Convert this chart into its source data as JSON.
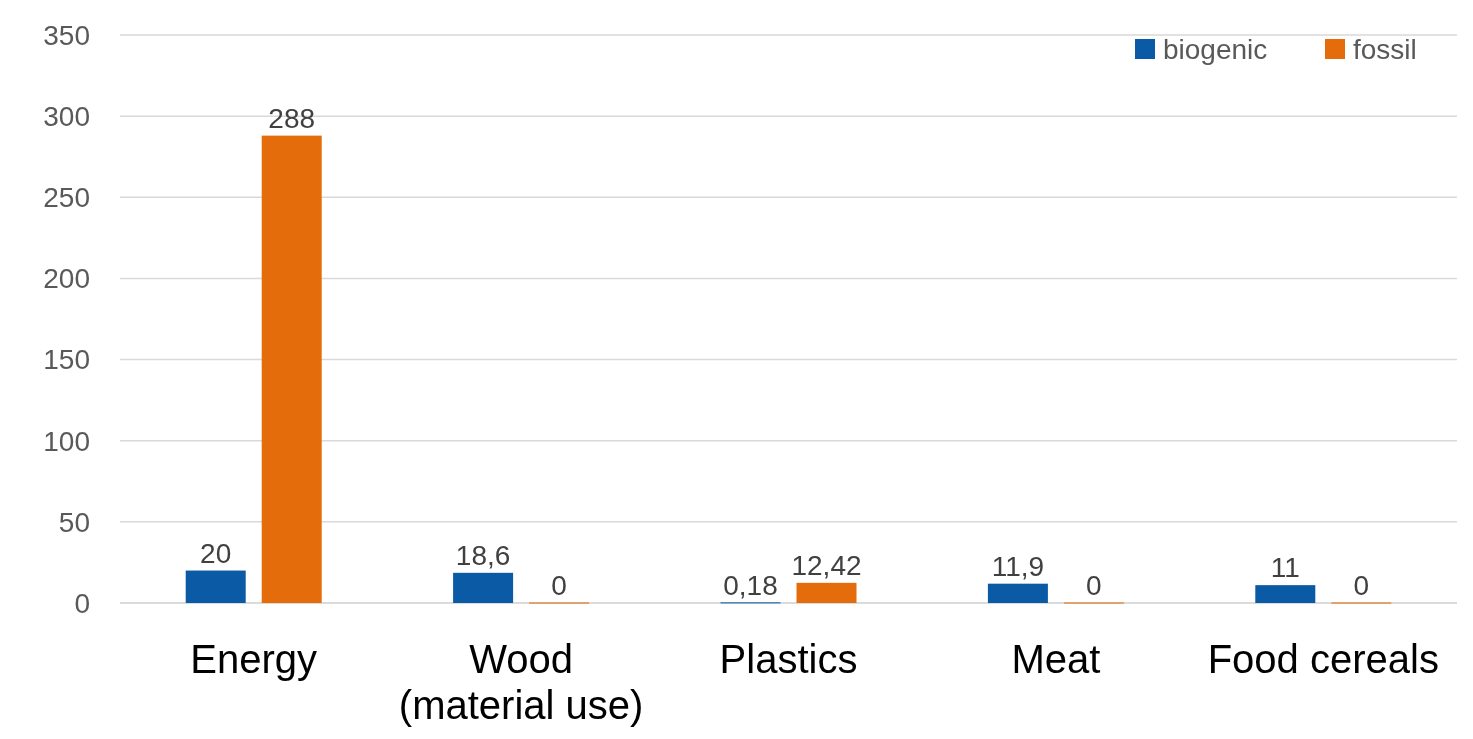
{
  "chart_data": {
    "type": "bar",
    "categories": [
      "Energy",
      "Wood\n(material use)",
      "Plastics",
      "Meat",
      "Food cereals"
    ],
    "series": [
      {
        "name": "biogenic",
        "color": "#0a5aa5",
        "values": [
          20,
          18.6,
          0.18,
          11.9,
          11
        ],
        "value_labels": [
          "20",
          "18,6",
          "0,18",
          "11,9",
          "11"
        ]
      },
      {
        "name": "fossil",
        "color": "#e46c0a",
        "values": [
          288,
          0,
          12.42,
          0,
          0
        ],
        "value_labels": [
          "288",
          "0",
          "12,42",
          "0",
          "0"
        ]
      }
    ],
    "ylim": [
      0,
      350
    ],
    "yticks": [
      0,
      50,
      100,
      150,
      200,
      250,
      300,
      350
    ],
    "grid": "y",
    "legend": "top right"
  }
}
